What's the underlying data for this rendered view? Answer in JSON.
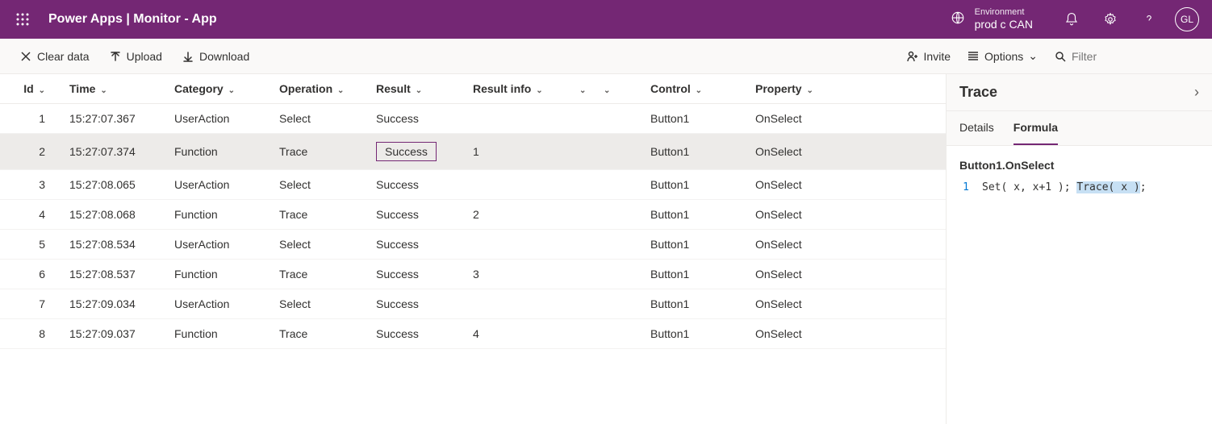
{
  "header": {
    "title": "Power Apps  |  Monitor - App",
    "env_label": "Environment",
    "env_name": "prod c CAN",
    "avatar_initials": "GL"
  },
  "commands": {
    "clear": "Clear data",
    "upload": "Upload",
    "download": "Download",
    "invite": "Invite",
    "options": "Options",
    "filter_placeholder": "Filter"
  },
  "columns": {
    "id": "Id",
    "time": "Time",
    "category": "Category",
    "operation": "Operation",
    "result": "Result",
    "result_info": "Result info",
    "control": "Control",
    "property": "Property"
  },
  "rows": [
    {
      "id": "1",
      "time": "15:27:07.367",
      "category": "UserAction",
      "operation": "Select",
      "result": "Success",
      "info": "",
      "control": "Button1",
      "property": "OnSelect",
      "selected": false,
      "boxed": false
    },
    {
      "id": "2",
      "time": "15:27:07.374",
      "category": "Function",
      "operation": "Trace",
      "result": "Success",
      "info": "1",
      "control": "Button1",
      "property": "OnSelect",
      "selected": true,
      "boxed": true
    },
    {
      "id": "3",
      "time": "15:27:08.065",
      "category": "UserAction",
      "operation": "Select",
      "result": "Success",
      "info": "",
      "control": "Button1",
      "property": "OnSelect",
      "selected": false,
      "boxed": false
    },
    {
      "id": "4",
      "time": "15:27:08.068",
      "category": "Function",
      "operation": "Trace",
      "result": "Success",
      "info": "2",
      "control": "Button1",
      "property": "OnSelect",
      "selected": false,
      "boxed": false
    },
    {
      "id": "5",
      "time": "15:27:08.534",
      "category": "UserAction",
      "operation": "Select",
      "result": "Success",
      "info": "",
      "control": "Button1",
      "property": "OnSelect",
      "selected": false,
      "boxed": false
    },
    {
      "id": "6",
      "time": "15:27:08.537",
      "category": "Function",
      "operation": "Trace",
      "result": "Success",
      "info": "3",
      "control": "Button1",
      "property": "OnSelect",
      "selected": false,
      "boxed": false
    },
    {
      "id": "7",
      "time": "15:27:09.034",
      "category": "UserAction",
      "operation": "Select",
      "result": "Success",
      "info": "",
      "control": "Button1",
      "property": "OnSelect",
      "selected": false,
      "boxed": false
    },
    {
      "id": "8",
      "time": "15:27:09.037",
      "category": "Function",
      "operation": "Trace",
      "result": "Success",
      "info": "4",
      "control": "Button1",
      "property": "OnSelect",
      "selected": false,
      "boxed": false
    }
  ],
  "panel": {
    "title": "Trace",
    "tab_details": "Details",
    "tab_formula": "Formula",
    "formula_ref": "Button1.OnSelect",
    "code_line_num": "1",
    "code_set": "Set( x, x+1 ); ",
    "code_trace": "Trace( x )",
    "code_end": ";"
  },
  "colors": {
    "brand": "#742774",
    "toolbar_bg": "#faf9f8",
    "border": "#edebe9",
    "row_selected": "#edebe9",
    "highlight": "#c7e0f4",
    "link": "#0078d4"
  }
}
